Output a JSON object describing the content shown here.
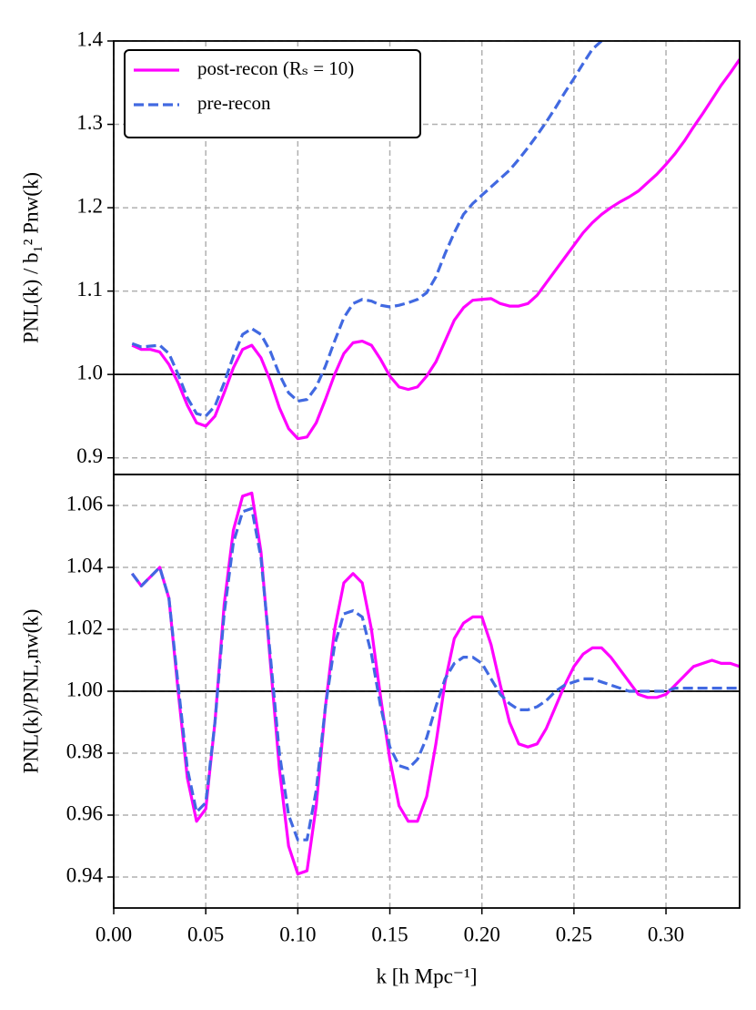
{
  "chart_data": [
    {
      "type": "line",
      "ylabel": "PNL(k) / b₁² Pnw(k)",
      "x": [
        0.01,
        0.015,
        0.02,
        0.025,
        0.03,
        0.035,
        0.04,
        0.045,
        0.05,
        0.055,
        0.06,
        0.065,
        0.07,
        0.075,
        0.08,
        0.085,
        0.09,
        0.095,
        0.1,
        0.105,
        0.11,
        0.115,
        0.12,
        0.125,
        0.13,
        0.135,
        0.14,
        0.145,
        0.15,
        0.155,
        0.16,
        0.165,
        0.17,
        0.175,
        0.18,
        0.185,
        0.19,
        0.195,
        0.2,
        0.205,
        0.21,
        0.215,
        0.22,
        0.225,
        0.23,
        0.235,
        0.24,
        0.245,
        0.25,
        0.255,
        0.26,
        0.265,
        0.27,
        0.275,
        0.28,
        0.285,
        0.29,
        0.295,
        0.3,
        0.305,
        0.31,
        0.315,
        0.32,
        0.325,
        0.33,
        0.335,
        0.34
      ],
      "series": [
        {
          "name": "post-recon (Rₛ = 10)",
          "color": "#ff00ff",
          "linestyle": "solid",
          "values": [
            1.035,
            1.03,
            1.03,
            1.027,
            1.012,
            0.99,
            0.963,
            0.942,
            0.938,
            0.95,
            0.978,
            1.008,
            1.03,
            1.035,
            1.02,
            0.993,
            0.96,
            0.935,
            0.923,
            0.925,
            0.942,
            0.97,
            1.0,
            1.025,
            1.038,
            1.04,
            1.035,
            1.018,
            0.998,
            0.985,
            0.982,
            0.985,
            0.998,
            1.015,
            1.04,
            1.065,
            1.08,
            1.089,
            1.09,
            1.091,
            1.085,
            1.082,
            1.082,
            1.085,
            1.095,
            1.11,
            1.125,
            1.14,
            1.155,
            1.17,
            1.182,
            1.192,
            1.2,
            1.207,
            1.213,
            1.22,
            1.23,
            1.24,
            1.252,
            1.265,
            1.28,
            1.297,
            1.313,
            1.33,
            1.347,
            1.362,
            1.378
          ]
        },
        {
          "name": "pre-recon",
          "color": "#4169e1",
          "linestyle": "dashed",
          "values": [
            1.037,
            1.033,
            1.034,
            1.035,
            1.025,
            1.0,
            0.972,
            0.953,
            0.95,
            0.962,
            0.99,
            1.022,
            1.048,
            1.055,
            1.048,
            1.028,
            1.0,
            0.978,
            0.968,
            0.97,
            0.985,
            1.01,
            1.04,
            1.068,
            1.085,
            1.09,
            1.088,
            1.083,
            1.081,
            1.083,
            1.086,
            1.09,
            1.098,
            1.117,
            1.145,
            1.17,
            1.192,
            1.205,
            1.215,
            1.225,
            1.235,
            1.245,
            1.258,
            1.272,
            1.287,
            1.303,
            1.32,
            1.338,
            1.355,
            1.373,
            1.39,
            1.4,
            null,
            null,
            null,
            null,
            null,
            null,
            null,
            null,
            null,
            null,
            null,
            null,
            null,
            null,
            null
          ]
        }
      ],
      "xlim": [
        0,
        0.34
      ],
      "xticks": [
        0,
        0.05,
        0.1,
        0.15,
        0.2,
        0.25,
        0.3
      ],
      "ylim": [
        0.88,
        1.4
      ],
      "yticks": [
        0.9,
        {
          "value": 1,
          "label": "1.0"
        },
        1.1,
        1.2,
        1.3,
        1.4
      ],
      "hline": 1,
      "grid": true,
      "legend": "upper left"
    },
    {
      "type": "line",
      "ylabel": "PNL(k)/PNL,nw(k)",
      "xlabel": "k [h Mpc⁻¹]",
      "x": [
        0.01,
        0.015,
        0.02,
        0.025,
        0.03,
        0.035,
        0.04,
        0.045,
        0.05,
        0.055,
        0.06,
        0.065,
        0.07,
        0.075,
        0.08,
        0.085,
        0.09,
        0.095,
        0.1,
        0.105,
        0.11,
        0.115,
        0.12,
        0.125,
        0.13,
        0.135,
        0.14,
        0.145,
        0.15,
        0.155,
        0.16,
        0.165,
        0.17,
        0.175,
        0.18,
        0.185,
        0.19,
        0.195,
        0.2,
        0.205,
        0.21,
        0.215,
        0.22,
        0.225,
        0.23,
        0.235,
        0.24,
        0.245,
        0.25,
        0.255,
        0.26,
        0.265,
        0.27,
        0.275,
        0.28,
        0.285,
        0.29,
        0.295,
        0.3,
        0.305,
        0.31,
        0.315,
        0.32,
        0.325,
        0.33,
        0.335,
        0.34
      ],
      "series": [
        {
          "color": "#ff00ff",
          "linestyle": "solid",
          "values": [
            1.038,
            1.034,
            1.037,
            1.04,
            1.03,
            1.0,
            0.972,
            0.958,
            0.962,
            0.99,
            1.028,
            1.052,
            1.063,
            1.064,
            1.045,
            1.01,
            0.975,
            0.95,
            0.941,
            0.942,
            0.963,
            0.995,
            1.02,
            1.035,
            1.038,
            1.035,
            1.02,
            0.998,
            0.978,
            0.963,
            0.958,
            0.958,
            0.966,
            0.983,
            1.003,
            1.017,
            1.022,
            1.024,
            1.024,
            1.015,
            1.002,
            0.99,
            0.983,
            0.982,
            0.983,
            0.988,
            0.995,
            1.002,
            1.008,
            1.012,
            1.014,
            1.014,
            1.011,
            1.007,
            1.003,
            0.999,
            0.998,
            0.998,
            0.999,
            1.002,
            1.005,
            1.008,
            1.009,
            1.01,
            1.009,
            1.009,
            1.008
          ]
        },
        {
          "color": "#4169e1",
          "linestyle": "dashed",
          "values": [
            1.038,
            1.034,
            1.037,
            1.04,
            1.03,
            1.002,
            0.975,
            0.961,
            0.964,
            0.99,
            1.025,
            1.048,
            1.058,
            1.059,
            1.043,
            1.012,
            0.98,
            0.96,
            0.952,
            0.952,
            0.968,
            0.995,
            1.015,
            1.025,
            1.026,
            1.024,
            1.012,
            0.995,
            0.982,
            0.976,
            0.975,
            0.978,
            0.985,
            0.995,
            1.004,
            1.009,
            1.011,
            1.011,
            1.009,
            1.004,
            0.999,
            0.996,
            0.994,
            0.994,
            0.995,
            0.997,
            1.0,
            1.002,
            1.003,
            1.004,
            1.004,
            1.003,
            1.002,
            1.001,
            1.0,
            1.0,
            1.0,
            1.0,
            1.0,
            1.001,
            1.001,
            1.001,
            1.001,
            1.001,
            1.001,
            1.001,
            1.001
          ]
        }
      ],
      "xlim": [
        0,
        0.34
      ],
      "xticks": [
        {
          "value": 0,
          "label": "0.00"
        },
        0.05,
        {
          "value": 0.1,
          "label": "0.10"
        },
        0.15,
        {
          "value": 0.2,
          "label": "0.20"
        },
        0.25,
        {
          "value": 0.3,
          "label": "0.30"
        }
      ],
      "ylim": [
        0.93,
        1.07
      ],
      "yticks": [
        0.94,
        0.96,
        0.98,
        {
          "value": 1,
          "label": "1.00"
        },
        1.02,
        1.04,
        1.06
      ],
      "hline": 1,
      "grid": true
    }
  ]
}
